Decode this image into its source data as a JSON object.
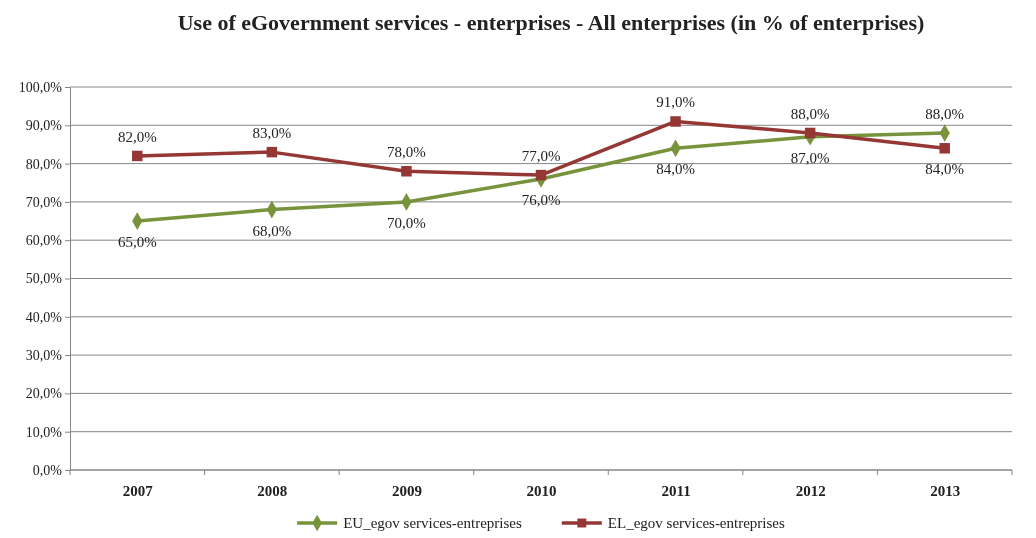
{
  "chart_data": {
    "type": "line",
    "title": "Use of eGovernment services - enterprises - All enterprises (in % of enterprises)",
    "categories": [
      "2007",
      "2008",
      "2009",
      "2010",
      "2011",
      "2012",
      "2013"
    ],
    "series": [
      {
        "name": "EU_egov services-entreprises",
        "color": "#77933c",
        "marker": "diamond",
        "values": [
          65,
          68,
          70,
          76,
          84,
          87,
          88
        ],
        "value_labels": [
          "65,0%",
          "68,0%",
          "70,0%",
          "76,0%",
          "84,0%",
          "87,0%",
          "88,0%"
        ]
      },
      {
        "name": "EL_egov services-entreprises",
        "color": "#953735",
        "marker": "square",
        "values": [
          82,
          83,
          78,
          77,
          91,
          88,
          84
        ],
        "value_labels": [
          "82,0%",
          "83,0%",
          "78,0%",
          "77,0%",
          "91,0%",
          "88,0%",
          "84,0%"
        ]
      }
    ],
    "ylim": [
      0,
      100
    ],
    "yticks": [
      {
        "value": 0,
        "label": "0,0%"
      },
      {
        "value": 10,
        "label": "10,0%"
      },
      {
        "value": 20,
        "label": "20,0%"
      },
      {
        "value": 30,
        "label": "30,0%"
      },
      {
        "value": 40,
        "label": "40,0%"
      },
      {
        "value": 50,
        "label": "50,0%"
      },
      {
        "value": 60,
        "label": "60,0%"
      },
      {
        "value": 70,
        "label": "70,0%"
      },
      {
        "value": 80,
        "label": "80,0%"
      },
      {
        "value": 90,
        "label": "90,0%"
      },
      {
        "value": 100,
        "label": "100,0%"
      }
    ],
    "grid": "y",
    "legend": "bottom",
    "line_style": "solid"
  }
}
